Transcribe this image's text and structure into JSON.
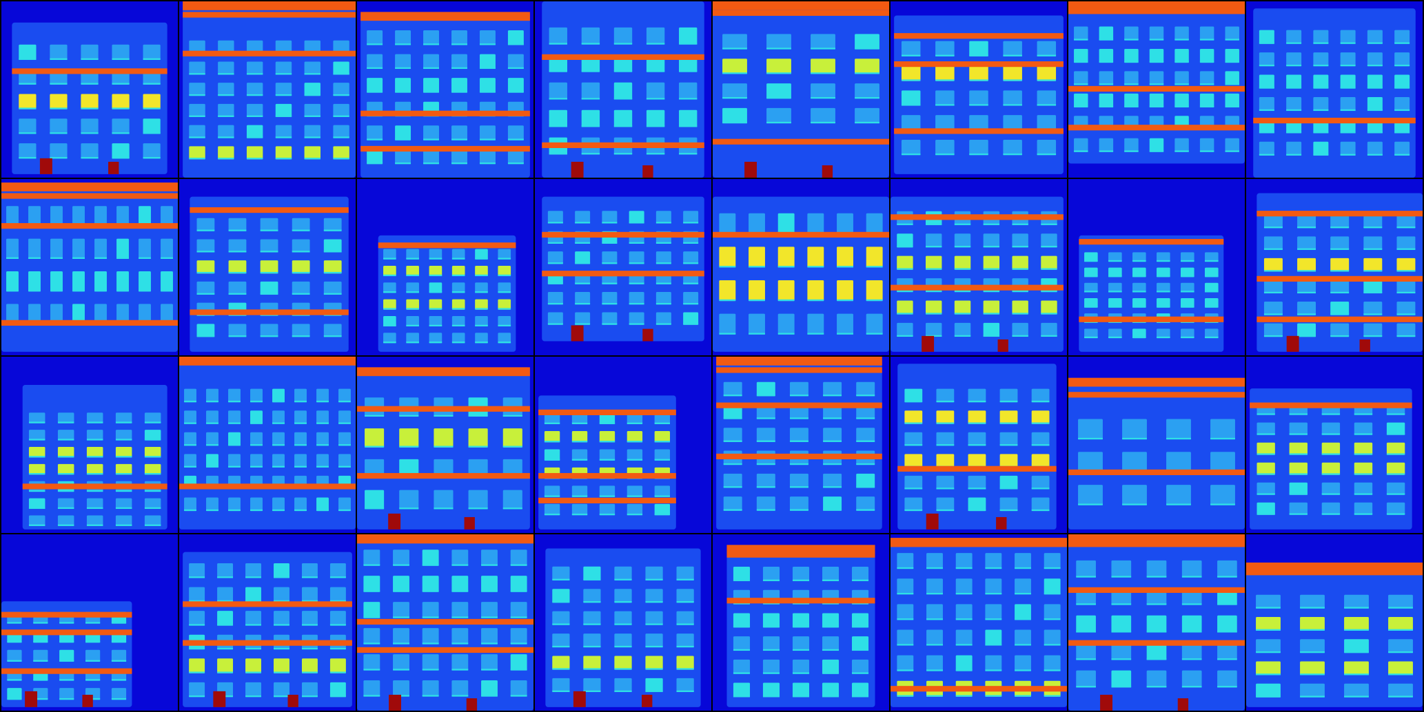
{
  "image": {
    "description_kind": "grid-of-semantic-facade-label-maps",
    "columns": 8,
    "rows": 4,
    "tile_count": 32
  },
  "palette": {
    "background": "#0707d8",
    "facade": "#1a4cf0",
    "window": "#2ba0f2",
    "window_light": "#2ee0e6",
    "balcony": "#c8f03a",
    "shop_yellow": "#f2e62a",
    "cornice": "#f25a12",
    "door": "#a00a0a"
  },
  "tiles": [
    {
      "facade": [
        0.06,
        0.12,
        0.94,
        0.98
      ],
      "rows": 5,
      "cols": 5,
      "winTop": 0.22,
      "winBottom": 0.92,
      "corniceAt": [
        0.38
      ],
      "topBand": false,
      "accent": "shop_yellow",
      "accentRows": [
        2
      ],
      "doors": true
    },
    {
      "facade": [
        0.02,
        0.0,
        1.0,
        1.0
      ],
      "rows": 6,
      "cols": 6,
      "winTop": 0.2,
      "winBottom": 0.92,
      "corniceAt": [
        0.06,
        0.28
      ],
      "topBand": true,
      "accent": "balcony",
      "accentRows": [
        5
      ],
      "doors": false
    },
    {
      "facade": [
        0.02,
        0.06,
        0.98,
        1.0
      ],
      "rows": 6,
      "cols": 6,
      "winTop": 0.14,
      "winBottom": 0.95,
      "corniceAt": [
        0.62,
        0.82
      ],
      "topBand": true,
      "accent": "window_light",
      "accentRows": [
        2
      ],
      "doors": false
    },
    {
      "facade": [
        0.04,
        0.0,
        0.96,
        1.0
      ],
      "rows": 5,
      "cols": 5,
      "winTop": 0.12,
      "winBottom": 0.9,
      "corniceAt": [
        0.3,
        0.8
      ],
      "topBand": false,
      "accent": "window_light",
      "accentRows": [
        1,
        3
      ],
      "doors": true
    },
    {
      "facade": [
        0.0,
        0.0,
        1.0,
        1.0
      ],
      "rows": 4,
      "cols": 4,
      "winTop": 0.16,
      "winBottom": 0.72,
      "corniceAt": [
        0.05,
        0.78
      ],
      "topBand": true,
      "accent": "balcony",
      "accentRows": [
        1
      ],
      "doors": true
    },
    {
      "facade": [
        0.02,
        0.08,
        0.98,
        0.98
      ],
      "rows": 5,
      "cols": 5,
      "winTop": 0.2,
      "winBottom": 0.9,
      "corniceAt": [
        0.18,
        0.34,
        0.72
      ],
      "topBand": false,
      "accent": "shop_yellow",
      "accentRows": [
        1
      ],
      "doors": false
    },
    {
      "facade": [
        0.0,
        0.0,
        1.0,
        0.92
      ],
      "rows": 6,
      "cols": 7,
      "winTop": 0.12,
      "winBottom": 0.88,
      "corniceAt": [
        0.04,
        0.48,
        0.7
      ],
      "topBand": true,
      "accent": "window_light",
      "accentRows": [
        1,
        3
      ],
      "doors": false
    },
    {
      "facade": [
        0.04,
        0.04,
        0.96,
        1.0
      ],
      "rows": 6,
      "cols": 6,
      "winTop": 0.14,
      "winBottom": 0.9,
      "corniceAt": [
        0.66
      ],
      "topBand": false,
      "accent": "window_light",
      "accentRows": [
        2,
        4
      ],
      "doors": false
    },
    {
      "facade": [
        0.0,
        0.02,
        1.0,
        0.98
      ],
      "rows": 4,
      "cols": 8,
      "winTop": 0.12,
      "winBottom": 0.86,
      "corniceAt": [
        0.08,
        0.25,
        0.8
      ],
      "topBand": true,
      "accent": "window_light",
      "accentRows": [
        2
      ],
      "doors": false
    },
    {
      "facade": [
        0.06,
        0.1,
        0.96,
        0.98
      ],
      "rows": 6,
      "cols": 5,
      "winTop": 0.2,
      "winBottom": 0.92,
      "corniceAt": [
        0.16,
        0.74
      ],
      "topBand": false,
      "accent": "balcony",
      "accentRows": [
        2
      ],
      "doors": false
    },
    {
      "facade": [
        0.12,
        0.32,
        0.9,
        0.98
      ],
      "rows": 6,
      "cols": 6,
      "winTop": 0.38,
      "winBottom": 0.95,
      "corniceAt": [
        0.36
      ],
      "topBand": false,
      "accent": "balcony",
      "accentRows": [
        1,
        3
      ],
      "doors": false
    },
    {
      "facade": [
        0.04,
        0.1,
        0.96,
        0.92
      ],
      "rows": 6,
      "cols": 6,
      "winTop": 0.16,
      "winBottom": 0.85,
      "corniceAt": [
        0.3,
        0.52
      ],
      "topBand": false,
      "accent": "window_light",
      "accentRows": [],
      "doors": true
    },
    {
      "facade": [
        0.0,
        0.1,
        1.0,
        0.98
      ],
      "rows": 4,
      "cols": 6,
      "winTop": 0.16,
      "winBottom": 0.92,
      "corniceAt": [
        0.3
      ],
      "topBand": false,
      "accent": "shop_yellow",
      "accentRows": [
        1,
        2
      ],
      "doors": false
    },
    {
      "facade": [
        0.0,
        0.1,
        0.98,
        0.98
      ],
      "rows": 6,
      "cols": 6,
      "winTop": 0.16,
      "winBottom": 0.92,
      "corniceAt": [
        0.2,
        0.6
      ],
      "topBand": false,
      "accent": "balcony",
      "accentRows": [
        2,
        4
      ],
      "doors": true
    },
    {
      "facade": [
        0.06,
        0.32,
        0.88,
        0.98
      ],
      "rows": 6,
      "cols": 6,
      "winTop": 0.4,
      "winBottom": 0.92,
      "corniceAt": [
        0.34,
        0.78
      ],
      "topBand": false,
      "accent": "window_light",
      "accentRows": [
        1,
        3
      ],
      "doors": false
    },
    {
      "facade": [
        0.06,
        0.08,
        1.0,
        0.98
      ],
      "rows": 6,
      "cols": 5,
      "winTop": 0.18,
      "winBottom": 0.92,
      "corniceAt": [
        0.18,
        0.55,
        0.78
      ],
      "topBand": false,
      "accent": "shop_yellow",
      "accentRows": [
        2
      ],
      "doors": true
    },
    {
      "facade": [
        0.12,
        0.16,
        0.94,
        0.98
      ],
      "rows": 7,
      "cols": 5,
      "winTop": 0.3,
      "winBottom": 0.98,
      "corniceAt": [
        0.72
      ],
      "topBand": false,
      "accent": "balcony",
      "accentRows": [
        2,
        3
      ],
      "doors": false
    },
    {
      "facade": [
        0.0,
        0.0,
        1.0,
        0.98
      ],
      "rows": 6,
      "cols": 8,
      "winTop": 0.16,
      "winBottom": 0.9,
      "corniceAt": [
        0.72
      ],
      "topBand": true,
      "accent": "shop_yellow",
      "accentRows": [],
      "doors": false
    },
    {
      "facade": [
        0.0,
        0.06,
        0.98,
        0.98
      ],
      "rows": 4,
      "cols": 5,
      "winTop": 0.2,
      "winBottom": 0.9,
      "corniceAt": [
        0.28,
        0.66
      ],
      "topBand": true,
      "accent": "balcony",
      "accentRows": [
        1
      ],
      "doors": true
    },
    {
      "facade": [
        0.02,
        0.22,
        0.8,
        0.98
      ],
      "rows": 6,
      "cols": 5,
      "winTop": 0.3,
      "winBottom": 0.92,
      "corniceAt": [
        0.3,
        0.66,
        0.8
      ],
      "topBand": false,
      "accent": "balcony",
      "accentRows": [
        1,
        3
      ],
      "doors": false
    },
    {
      "facade": [
        0.02,
        0.0,
        0.96,
        0.98
      ],
      "rows": 6,
      "cols": 5,
      "winTop": 0.12,
      "winBottom": 0.9,
      "corniceAt": [
        0.06,
        0.26,
        0.55
      ],
      "topBand": true,
      "accent": "window_light",
      "accentRows": [],
      "doors": false
    },
    {
      "facade": [
        0.04,
        0.04,
        0.94,
        0.98
      ],
      "rows": 6,
      "cols": 5,
      "winTop": 0.16,
      "winBottom": 0.9,
      "corniceAt": [
        0.62
      ],
      "topBand": false,
      "accent": "shop_yellow",
      "accentRows": [
        1,
        3
      ],
      "doors": true
    },
    {
      "facade": [
        0.0,
        0.12,
        1.0,
        0.98
      ],
      "rows": 3,
      "cols": 4,
      "winTop": 0.32,
      "winBottom": 0.88,
      "corniceAt": [
        0.2,
        0.64
      ],
      "topBand": true,
      "accent": "window_light",
      "accentRows": [],
      "doors": false
    },
    {
      "facade": [
        0.02,
        0.18,
        0.94,
        0.98
      ],
      "rows": 6,
      "cols": 5,
      "winTop": 0.24,
      "winBottom": 0.92,
      "corniceAt": [
        0.26
      ],
      "topBand": false,
      "accent": "balcony",
      "accentRows": [
        2,
        3
      ],
      "doors": false
    },
    {
      "facade": [
        0.0,
        0.38,
        0.74,
        0.98
      ],
      "rows": 5,
      "cols": 5,
      "winTop": 0.42,
      "winBottom": 0.96,
      "corniceAt": [
        0.44,
        0.54,
        0.76
      ],
      "topBand": false,
      "accent": "window_light",
      "accentRows": [
        1
      ],
      "doors": true
    },
    {
      "facade": [
        0.02,
        0.1,
        0.98,
        0.98
      ],
      "rows": 6,
      "cols": 6,
      "winTop": 0.14,
      "winBottom": 0.95,
      "corniceAt": [
        0.38,
        0.6
      ],
      "topBand": false,
      "accent": "balcony",
      "accentRows": [
        4
      ],
      "doors": true
    },
    {
      "facade": [
        0.0,
        0.0,
        1.0,
        1.0
      ],
      "rows": 6,
      "cols": 6,
      "winTop": 0.06,
      "winBottom": 0.95,
      "corniceAt": [
        0.02,
        0.48,
        0.64
      ],
      "topBand": true,
      "accent": "window_light",
      "accentRows": [
        1
      ],
      "doors": true
    },
    {
      "facade": [
        0.06,
        0.08,
        0.94,
        0.98
      ],
      "rows": 6,
      "cols": 5,
      "winTop": 0.16,
      "winBottom": 0.92,
      "corniceAt": [],
      "topBand": false,
      "accent": "balcony",
      "accentRows": [
        4
      ],
      "doors": true
    },
    {
      "facade": [
        0.08,
        0.06,
        0.92,
        0.98
      ],
      "rows": 6,
      "cols": 5,
      "winTop": 0.16,
      "winBottom": 0.95,
      "corniceAt": [
        0.1,
        0.36
      ],
      "topBand": true,
      "accent": "window_light",
      "accentRows": [
        2,
        5
      ],
      "doors": false
    },
    {
      "facade": [
        0.0,
        0.02,
        1.0,
        0.98
      ],
      "rows": 6,
      "cols": 6,
      "winTop": 0.08,
      "winBottom": 0.95,
      "corniceAt": [
        0.04,
        0.86
      ],
      "topBand": true,
      "accent": "balcony",
      "accentRows": [
        5
      ],
      "doors": false
    },
    {
      "facade": [
        0.0,
        0.0,
        1.0,
        1.0
      ],
      "rows": 5,
      "cols": 5,
      "winTop": 0.12,
      "winBottom": 0.9,
      "corniceAt": [
        0.04,
        0.3,
        0.6
      ],
      "topBand": true,
      "accent": "window_light",
      "accentRows": [
        2
      ],
      "doors": true
    },
    {
      "facade": [
        0.0,
        0.16,
        1.0,
        0.98
      ],
      "rows": 5,
      "cols": 4,
      "winTop": 0.32,
      "winBottom": 0.95,
      "corniceAt": [
        0.2
      ],
      "topBand": true,
      "accent": "balcony",
      "accentRows": [
        1,
        3
      ],
      "doors": false
    }
  ]
}
